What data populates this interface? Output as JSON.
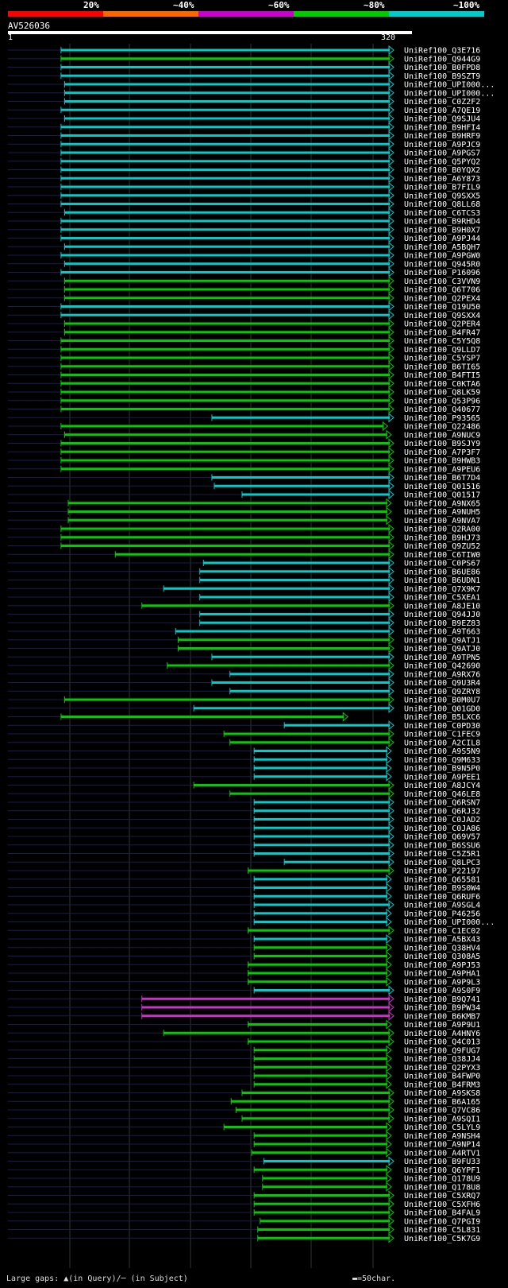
{
  "scale": {
    "labels": [
      "20%",
      "~40%",
      "~60%",
      "~80%",
      "~100%"
    ],
    "colors": [
      "#ff0000",
      "#ff6600",
      "#cc00cc",
      "#00cc00",
      "#00cccc"
    ]
  },
  "query_id": "AV526036",
  "ruler": {
    "start": "1",
    "end": "320"
  },
  "footer": {
    "gaps_label": "Large gaps: ▲(in Query)/─ (in Subject)",
    "scale_label": "▬=50char."
  },
  "chart_data": {
    "type": "alignment",
    "query_length": 320,
    "hits": [
      {
        "name": "UniRef100_Q3E716",
        "start": 45,
        "end": 320,
        "color": "cyan"
      },
      {
        "name": "UniRef100_Q944G9",
        "start": 45,
        "end": 320,
        "color": "green"
      },
      {
        "name": "UniRef100_B0FPD8",
        "start": 45,
        "end": 320,
        "color": "cyan"
      },
      {
        "name": "UniRef100_B9SZT9",
        "start": 45,
        "end": 320,
        "color": "cyan"
      },
      {
        "name": "UniRef100_UPI000...",
        "start": 48,
        "end": 320,
        "color": "cyan"
      },
      {
        "name": "UniRef100_UPI000...",
        "start": 48,
        "end": 320,
        "color": "cyan"
      },
      {
        "name": "UniRef100_C0Z2F2",
        "start": 48,
        "end": 320,
        "color": "cyan"
      },
      {
        "name": "UniRef100_A7QE19",
        "start": 45,
        "end": 320,
        "color": "cyan"
      },
      {
        "name": "UniRef100_Q9SJU4",
        "start": 48,
        "end": 320,
        "color": "cyan"
      },
      {
        "name": "UniRef100_B9HFI4",
        "start": 45,
        "end": 320,
        "color": "cyan"
      },
      {
        "name": "UniRef100_B9HRF9",
        "start": 45,
        "end": 320,
        "color": "cyan"
      },
      {
        "name": "UniRef100_A9PJC9",
        "start": 45,
        "end": 320,
        "color": "cyan"
      },
      {
        "name": "UniRef100_A9PGS7",
        "start": 45,
        "end": 320,
        "color": "cyan"
      },
      {
        "name": "UniRef100_Q5PYQ2",
        "start": 45,
        "end": 320,
        "color": "cyan"
      },
      {
        "name": "UniRef100_B0YQX2",
        "start": 45,
        "end": 320,
        "color": "cyan"
      },
      {
        "name": "UniRef100_A6Y873",
        "start": 45,
        "end": 320,
        "color": "cyan"
      },
      {
        "name": "UniRef100_B7FIL9",
        "start": 45,
        "end": 320,
        "color": "cyan"
      },
      {
        "name": "UniRef100_Q9SXX5",
        "start": 45,
        "end": 320,
        "color": "cyan"
      },
      {
        "name": "UniRef100_Q8LL68",
        "start": 45,
        "end": 320,
        "color": "cyan"
      },
      {
        "name": "UniRef100_C6TCS3",
        "start": 48,
        "end": 320,
        "color": "cyan"
      },
      {
        "name": "UniRef100_B9RHD4",
        "start": 45,
        "end": 320,
        "color": "cyan"
      },
      {
        "name": "UniRef100_B9H0X7",
        "start": 45,
        "end": 320,
        "color": "cyan"
      },
      {
        "name": "UniRef100_A9PJ44",
        "start": 45,
        "end": 320,
        "color": "cyan"
      },
      {
        "name": "UniRef100_A5BQH7",
        "start": 48,
        "end": 320,
        "color": "cyan"
      },
      {
        "name": "UniRef100_A9PGW0",
        "start": 45,
        "end": 320,
        "color": "cyan"
      },
      {
        "name": "UniRef100_Q945R0",
        "start": 48,
        "end": 320,
        "color": "cyan"
      },
      {
        "name": "UniRef100_P16096",
        "start": 45,
        "end": 320,
        "color": "cyan"
      },
      {
        "name": "UniRef100_C3VVN9",
        "start": 48,
        "end": 320,
        "color": "green"
      },
      {
        "name": "UniRef100_Q6T706",
        "start": 48,
        "end": 320,
        "color": "green"
      },
      {
        "name": "UniRef100_Q2PEX4",
        "start": 48,
        "end": 320,
        "color": "green"
      },
      {
        "name": "UniRef100_Q19U50",
        "start": 45,
        "end": 320,
        "color": "cyan"
      },
      {
        "name": "UniRef100_Q9SXX4",
        "start": 45,
        "end": 320,
        "color": "cyan"
      },
      {
        "name": "UniRef100_Q2PER4",
        "start": 48,
        "end": 320,
        "color": "green"
      },
      {
        "name": "UniRef100_B4FR47",
        "start": 48,
        "end": 320,
        "color": "green"
      },
      {
        "name": "UniRef100_C5Y5Q8",
        "start": 45,
        "end": 320,
        "color": "green"
      },
      {
        "name": "UniRef100_Q9LLD7",
        "start": 45,
        "end": 320,
        "color": "green"
      },
      {
        "name": "UniRef100_C5YSP7",
        "start": 45,
        "end": 320,
        "color": "green"
      },
      {
        "name": "UniRef100_B6TI65",
        "start": 45,
        "end": 320,
        "color": "green"
      },
      {
        "name": "UniRef100_B4FTI5",
        "start": 45,
        "end": 320,
        "color": "green"
      },
      {
        "name": "UniRef100_C0KTA6",
        "start": 45,
        "end": 320,
        "color": "green"
      },
      {
        "name": "UniRef100_Q8LK59",
        "start": 45,
        "end": 320,
        "color": "green"
      },
      {
        "name": "UniRef100_Q53P96",
        "start": 45,
        "end": 320,
        "color": "green"
      },
      {
        "name": "UniRef100_Q40677",
        "start": 45,
        "end": 320,
        "color": "green"
      },
      {
        "name": "UniRef100_P93565",
        "start": 170,
        "end": 320,
        "color": "cyan"
      },
      {
        "name": "UniRef100_Q22486",
        "start": 45,
        "end": 315,
        "color": "green"
      },
      {
        "name": "UniRef100_A9NUC9",
        "start": 48,
        "end": 318,
        "color": "green"
      },
      {
        "name": "UniRef100_B9SJY9",
        "start": 45,
        "end": 320,
        "color": "green"
      },
      {
        "name": "UniRef100_A7P3F7",
        "start": 45,
        "end": 320,
        "color": "green"
      },
      {
        "name": "UniRef100_B9HWB3",
        "start": 45,
        "end": 320,
        "color": "green"
      },
      {
        "name": "UniRef100_A9PEU6",
        "start": 45,
        "end": 320,
        "color": "green"
      },
      {
        "name": "UniRef100_B6T7D4",
        "start": 170,
        "end": 320,
        "color": "cyan"
      },
      {
        "name": "UniRef100_Q01516",
        "start": 172,
        "end": 320,
        "color": "cyan"
      },
      {
        "name": "UniRef100_Q01517",
        "start": 195,
        "end": 320,
        "color": "cyan"
      },
      {
        "name": "UniRef100_A9NX65",
        "start": 51,
        "end": 318,
        "color": "green"
      },
      {
        "name": "UniRef100_A9NUH5",
        "start": 51,
        "end": 318,
        "color": "green"
      },
      {
        "name": "UniRef100_A9NVA7",
        "start": 51,
        "end": 318,
        "color": "green"
      },
      {
        "name": "UniRef100_Q2RA00",
        "start": 45,
        "end": 320,
        "color": "green"
      },
      {
        "name": "UniRef100_B9HJ73",
        "start": 45,
        "end": 320,
        "color": "green"
      },
      {
        "name": "UniRef100_Q9ZU52",
        "start": 45,
        "end": 320,
        "color": "green"
      },
      {
        "name": "UniRef100_C6TIW0",
        "start": 90,
        "end": 320,
        "color": "green"
      },
      {
        "name": "UniRef100_C0PS67",
        "start": 163,
        "end": 320,
        "color": "cyan"
      },
      {
        "name": "UniRef100_B6UE86",
        "start": 160,
        "end": 320,
        "color": "cyan"
      },
      {
        "name": "UniRef100_B6UDN1",
        "start": 160,
        "end": 320,
        "color": "cyan"
      },
      {
        "name": "UniRef100_Q7X9K7",
        "start": 130,
        "end": 320,
        "color": "cyan"
      },
      {
        "name": "UniRef100_C5XEA1",
        "start": 160,
        "end": 320,
        "color": "cyan"
      },
      {
        "name": "UniRef100_A8JE10",
        "start": 112,
        "end": 320,
        "color": "green"
      },
      {
        "name": "UniRef100_Q94JJ0",
        "start": 160,
        "end": 320,
        "color": "cyan"
      },
      {
        "name": "UniRef100_B9EZ83",
        "start": 160,
        "end": 320,
        "color": "cyan"
      },
      {
        "name": "UniRef100_A9T663",
        "start": 140,
        "end": 320,
        "color": "cyan"
      },
      {
        "name": "UniRef100_Q9ATJ1",
        "start": 142,
        "end": 320,
        "color": "green"
      },
      {
        "name": "UniRef100_Q9ATJ0",
        "start": 142,
        "end": 320,
        "color": "green"
      },
      {
        "name": "UniRef100_A9TPN5",
        "start": 170,
        "end": 320,
        "color": "cyan"
      },
      {
        "name": "UniRef100_Q42690",
        "start": 133,
        "end": 320,
        "color": "green"
      },
      {
        "name": "UniRef100_A9RX76",
        "start": 185,
        "end": 320,
        "color": "cyan"
      },
      {
        "name": "UniRef100_Q9U3R4",
        "start": 170,
        "end": 320,
        "color": "cyan"
      },
      {
        "name": "UniRef100_Q9ZRY8",
        "start": 185,
        "end": 320,
        "color": "cyan"
      },
      {
        "name": "UniRef100_B0M0U7",
        "start": 48,
        "end": 320,
        "color": "green"
      },
      {
        "name": "UniRef100_Q01GD0",
        "start": 155,
        "end": 320,
        "color": "cyan"
      },
      {
        "name": "UniRef100_B5LXC6",
        "start": 45,
        "end": 282,
        "color": "green"
      },
      {
        "name": "UniRef100_C0PD30",
        "start": 230,
        "end": 320,
        "color": "cyan"
      },
      {
        "name": "UniRef100_C1FEC9",
        "start": 180,
        "end": 320,
        "color": "green"
      },
      {
        "name": "UniRef100_A2CIL8",
        "start": 185,
        "end": 320,
        "color": "green"
      },
      {
        "name": "UniRef100_A9S5N9",
        "start": 205,
        "end": 318,
        "color": "cyan"
      },
      {
        "name": "UniRef100_Q9M633",
        "start": 205,
        "end": 318,
        "color": "cyan"
      },
      {
        "name": "UniRef100_B9N5P0",
        "start": 205,
        "end": 318,
        "color": "cyan"
      },
      {
        "name": "UniRef100_A9PEE1",
        "start": 205,
        "end": 318,
        "color": "cyan"
      },
      {
        "name": "UniRef100_A8JCY4",
        "start": 155,
        "end": 320,
        "color": "green"
      },
      {
        "name": "UniRef100_Q46LE8",
        "start": 185,
        "end": 320,
        "color": "green"
      },
      {
        "name": "UniRef100_Q6RSN7",
        "start": 205,
        "end": 320,
        "color": "cyan"
      },
      {
        "name": "UniRef100_Q6RJ32",
        "start": 205,
        "end": 320,
        "color": "cyan"
      },
      {
        "name": "UniRef100_C0JAD2",
        "start": 205,
        "end": 320,
        "color": "cyan"
      },
      {
        "name": "UniRef100_C0JA86",
        "start": 205,
        "end": 320,
        "color": "cyan"
      },
      {
        "name": "UniRef100_Q69V57",
        "start": 205,
        "end": 320,
        "color": "cyan"
      },
      {
        "name": "UniRef100_B6SSU6",
        "start": 205,
        "end": 320,
        "color": "cyan"
      },
      {
        "name": "UniRef100_C5Z5R1",
        "start": 205,
        "end": 320,
        "color": "cyan"
      },
      {
        "name": "UniRef100_Q8LPC3",
        "start": 230,
        "end": 320,
        "color": "cyan"
      },
      {
        "name": "UniRef100_P22197",
        "start": 200,
        "end": 320,
        "color": "green"
      },
      {
        "name": "UniRef100_Q65581",
        "start": 205,
        "end": 318,
        "color": "cyan"
      },
      {
        "name": "UniRef100_B9S0W4",
        "start": 205,
        "end": 318,
        "color": "cyan"
      },
      {
        "name": "UniRef100_Q6RUF6",
        "start": 205,
        "end": 318,
        "color": "cyan"
      },
      {
        "name": "UniRef100_A9SGL4",
        "start": 205,
        "end": 320,
        "color": "cyan"
      },
      {
        "name": "UniRef100_P46256",
        "start": 205,
        "end": 318,
        "color": "cyan"
      },
      {
        "name": "UniRef100_UPI000...",
        "start": 205,
        "end": 318,
        "color": "cyan"
      },
      {
        "name": "UniRef100_C1EC02",
        "start": 200,
        "end": 320,
        "color": "green"
      },
      {
        "name": "UniRef100_A5BX43",
        "start": 205,
        "end": 318,
        "color": "cyan"
      },
      {
        "name": "UniRef100_Q38HV4",
        "start": 205,
        "end": 318,
        "color": "green"
      },
      {
        "name": "UniRef100_Q308A5",
        "start": 205,
        "end": 318,
        "color": "green"
      },
      {
        "name": "UniRef100_A9PJ53",
        "start": 200,
        "end": 318,
        "color": "green"
      },
      {
        "name": "UniRef100_A9PHA1",
        "start": 200,
        "end": 318,
        "color": "green"
      },
      {
        "name": "UniRef100_A9P9L3",
        "start": 200,
        "end": 318,
        "color": "green"
      },
      {
        "name": "UniRef100_A9S0F9",
        "start": 205,
        "end": 320,
        "color": "cyan"
      },
      {
        "name": "UniRef100_B9Q741",
        "start": 112,
        "end": 320,
        "color": "magenta"
      },
      {
        "name": "UniRef100_B9PW34",
        "start": 112,
        "end": 320,
        "color": "magenta"
      },
      {
        "name": "UniRef100_B6KMB7",
        "start": 112,
        "end": 320,
        "color": "magenta"
      },
      {
        "name": "UniRef100_A9P9U1",
        "start": 200,
        "end": 318,
        "color": "green"
      },
      {
        "name": "UniRef100_A4HNY6",
        "start": 130,
        "end": 320,
        "color": "green"
      },
      {
        "name": "UniRef100_Q4C013",
        "start": 200,
        "end": 320,
        "color": "green"
      },
      {
        "name": "UniRef100_Q9FUG7",
        "start": 205,
        "end": 318,
        "color": "green"
      },
      {
        "name": "UniRef100_Q38JJ4",
        "start": 205,
        "end": 318,
        "color": "green"
      },
      {
        "name": "UniRef100_Q2PYX3",
        "start": 205,
        "end": 318,
        "color": "green"
      },
      {
        "name": "UniRef100_B4FWP0",
        "start": 205,
        "end": 318,
        "color": "green"
      },
      {
        "name": "UniRef100_B4FRM3",
        "start": 205,
        "end": 318,
        "color": "green"
      },
      {
        "name": "UniRef100_A9SKS8",
        "start": 195,
        "end": 320,
        "color": "green"
      },
      {
        "name": "UniRef100_B6A165",
        "start": 186,
        "end": 320,
        "color": "green"
      },
      {
        "name": "UniRef100_Q7VC86",
        "start": 190,
        "end": 320,
        "color": "green"
      },
      {
        "name": "UniRef100_A9SQI1",
        "start": 195,
        "end": 320,
        "color": "green"
      },
      {
        "name": "UniRef100_C5LYL9",
        "start": 180,
        "end": 318,
        "color": "green"
      },
      {
        "name": "UniRef100_A9NSH4",
        "start": 205,
        "end": 318,
        "color": "green"
      },
      {
        "name": "UniRef100_A9NP14",
        "start": 205,
        "end": 318,
        "color": "green"
      },
      {
        "name": "UniRef100_A4RTV1",
        "start": 203,
        "end": 318,
        "color": "green"
      },
      {
        "name": "UniRef100_B9FU33",
        "start": 213,
        "end": 320,
        "color": "cyan"
      },
      {
        "name": "UniRef100_Q6YPF1",
        "start": 205,
        "end": 318,
        "color": "green"
      },
      {
        "name": "UniRef100_Q178U9",
        "start": 212,
        "end": 318,
        "color": "green"
      },
      {
        "name": "UniRef100_Q178U8",
        "start": 212,
        "end": 318,
        "color": "green"
      },
      {
        "name": "UniRef100_C5XRQ7",
        "start": 205,
        "end": 320,
        "color": "green"
      },
      {
        "name": "UniRef100_C5XFH6",
        "start": 205,
        "end": 320,
        "color": "green"
      },
      {
        "name": "UniRef100_B4FAL9",
        "start": 205,
        "end": 320,
        "color": "green"
      },
      {
        "name": "UniRef100_Q7PGI9",
        "start": 210,
        "end": 320,
        "color": "green"
      },
      {
        "name": "UniRef100_C5L831",
        "start": 208,
        "end": 320,
        "color": "green"
      },
      {
        "name": "UniRef100_C5K7G9",
        "start": 208,
        "end": 320,
        "color": "green"
      }
    ]
  }
}
